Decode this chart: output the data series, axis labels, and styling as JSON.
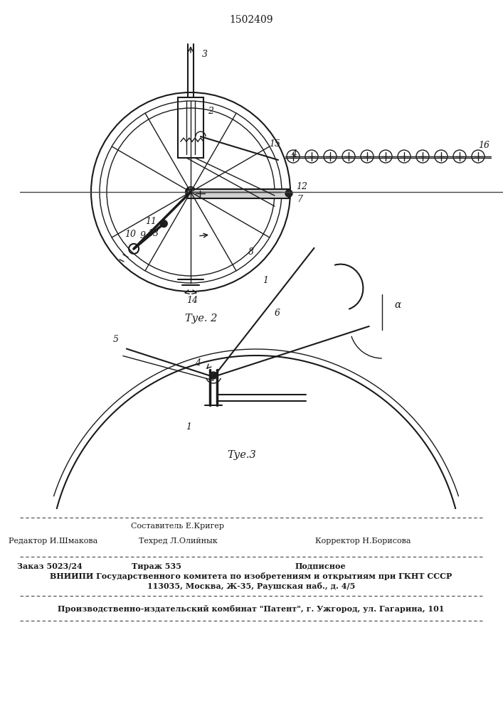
{
  "patent_number": "1502409",
  "fig2_caption": "Τуе. 2",
  "fig3_caption": "Τуе.3",
  "bg_color": "#ffffff",
  "line_color": "#1a1a1a",
  "footer_sestavitel": "Составитель Е.Кригер",
  "footer_redaktor": "Редактор И.Шмакова",
  "footer_tehred": "Техред Л.Олийнык",
  "footer_korrektor": "Корректор Н.Борисова",
  "footer_zakaz": "Заказ 5023/24",
  "footer_tirazh": "Тираж 535",
  "footer_podpisnoe": "Подписное",
  "footer_vniip": "ВНИИПИ Государственного комитета по изобретениям и открытиям при ГКНТ СССР",
  "footer_addr": "113035, Москва, Ж-35, Раушская наб., д. 4/5",
  "footer_patent": "Производственно-издательский комбинат \"Патент\", г. Ужгород, ул. Гагарина, 101"
}
